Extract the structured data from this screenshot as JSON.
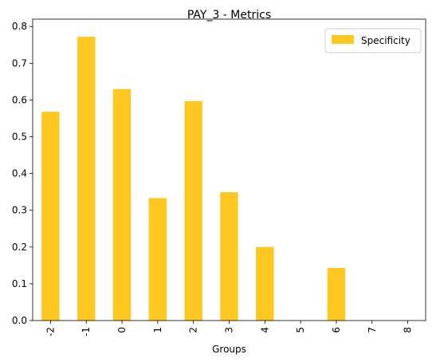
{
  "chart_data": {
    "type": "bar",
    "title": "PAY_3 - Metrics",
    "xlabel": "Groups",
    "ylabel": "",
    "categories": [
      "-2",
      "-1",
      "0",
      "1",
      "2",
      "3",
      "4",
      "5",
      "6",
      "7",
      "8"
    ],
    "series": [
      {
        "name": "Specificity",
        "values": [
          0.568,
          0.772,
          0.63,
          0.333,
          0.597,
          0.349,
          0.2,
          0.0,
          0.143,
          0.0,
          0.0
        ]
      }
    ],
    "ylim": [
      0,
      0.82
    ],
    "yticks": [
      "0.0",
      "0.1",
      "0.2",
      "0.3",
      "0.4",
      "0.5",
      "0.6",
      "0.7",
      "0.8"
    ],
    "ytick_values": [
      0,
      0.1,
      0.2,
      0.3,
      0.4,
      0.5,
      0.6,
      0.7,
      0.8
    ],
    "grid": false,
    "legend_position": "top-right",
    "colors": {
      "bar": "#FFC722",
      "axis": "#000000",
      "background": "#ffffff"
    }
  }
}
